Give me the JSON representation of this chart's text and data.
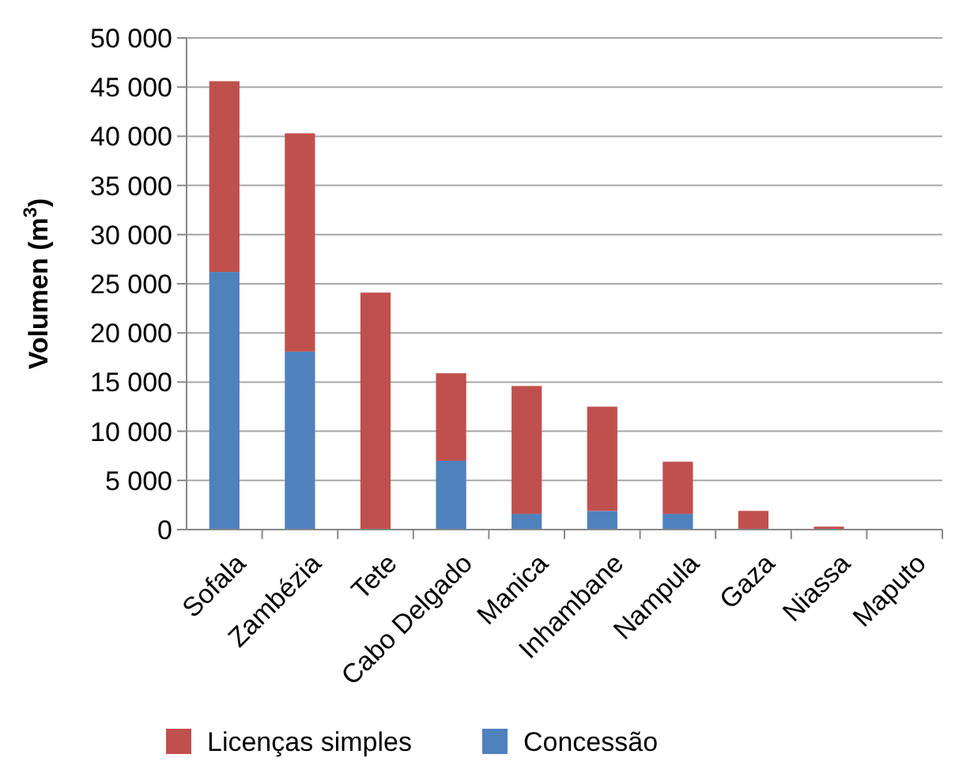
{
  "chart_data": {
    "type": "bar",
    "stacked": true,
    "ylabel": "Volumen (m$^{3}$)",
    "categories": [
      "Sofala",
      "Zambézia",
      "Tete",
      "Cabo Delgado",
      "Manica",
      "Inhambane",
      "Nampula",
      "Gaza",
      "Niassa",
      "Maputo"
    ],
    "series": [
      {
        "name": "Concessão",
        "color": "#4f81bd",
        "values": [
          26200,
          18100,
          null,
          7000,
          1600,
          1900,
          1600,
          0,
          0,
          0
        ]
      },
      {
        "name": "Licenças simples",
        "color": "#c0504d",
        "values": [
          19400,
          22200,
          24100,
          8900,
          13000,
          10600,
          5300,
          1900,
          300,
          0
        ]
      }
    ],
    "ylim": [
      0,
      50000
    ],
    "yticks": [
      {
        "value": 0,
        "label": "0"
      },
      {
        "value": 5000,
        "label": "5 000"
      },
      {
        "value": 10000,
        "label": "10 000"
      },
      {
        "value": 15000,
        "label": "15 000"
      },
      {
        "value": 20000,
        "label": "20 000"
      },
      {
        "value": 25000,
        "label": "25 000"
      },
      {
        "value": 30000,
        "label": "30 000"
      },
      {
        "value": 35000,
        "label": "35 000"
      },
      {
        "value": 40000,
        "label": "40 000"
      },
      {
        "value": 45000,
        "label": "45 000"
      },
      {
        "value": 50000,
        "label": "50 000"
      }
    ],
    "grid": "y",
    "legend": "bottom"
  }
}
